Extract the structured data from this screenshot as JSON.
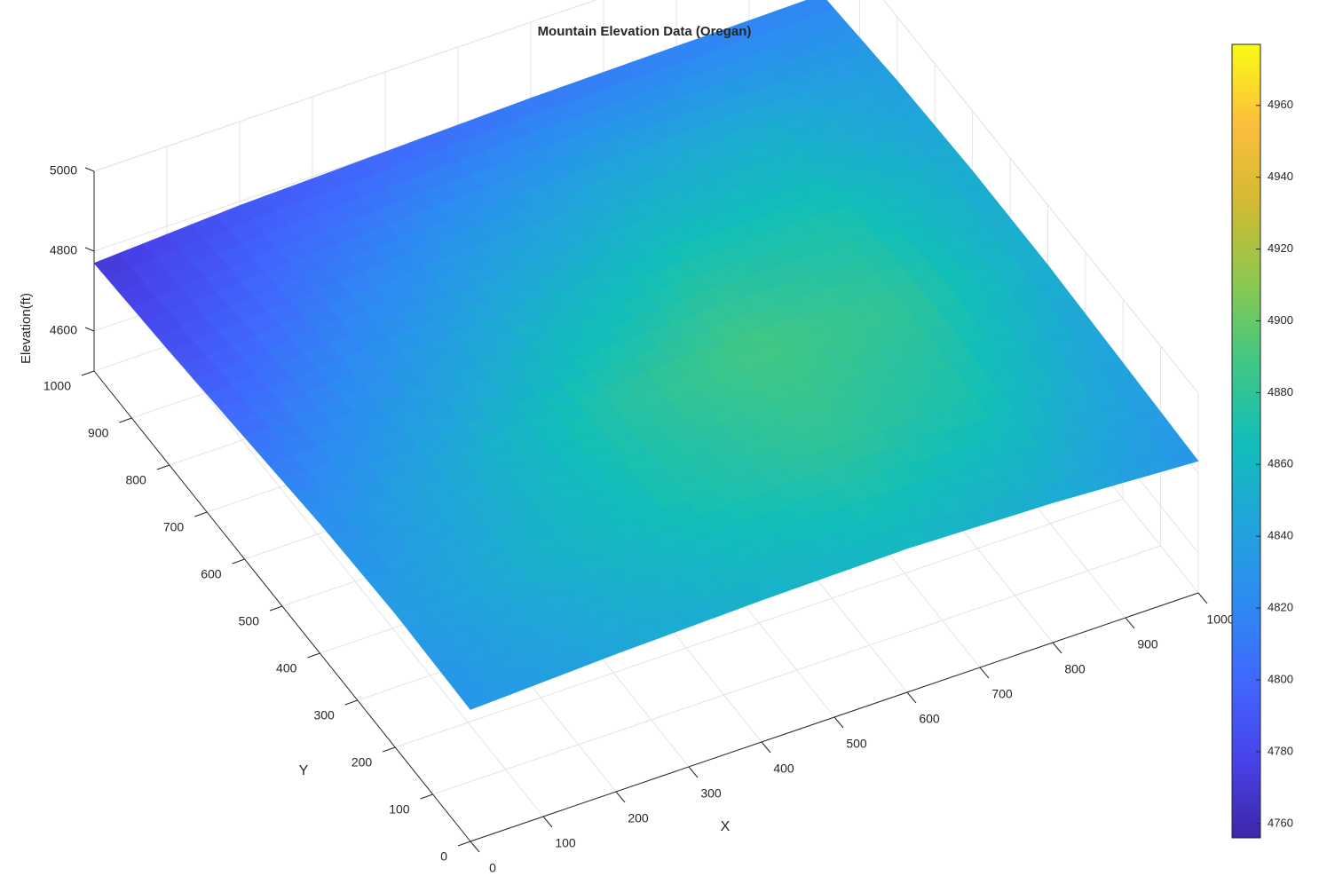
{
  "chart_data": {
    "type": "surface",
    "title": "Mountain Elevation Data (Oregan)",
    "xlabel": "X",
    "ylabel": "Y",
    "zlabel": "Elevation(ft)",
    "x": [
      0,
      200,
      400,
      600,
      800,
      1000
    ],
    "y": [
      0,
      200,
      400,
      600,
      800,
      1000
    ],
    "z": [
      [
        4830,
        4845,
        4855,
        4860,
        4850,
        4830
      ],
      [
        4835,
        4855,
        4870,
        4880,
        4870,
        4840
      ],
      [
        4825,
        4850,
        4875,
        4890,
        4880,
        4850
      ],
      [
        4805,
        4830,
        4855,
        4870,
        4870,
        4850
      ],
      [
        4785,
        4810,
        4830,
        4845,
        4850,
        4840
      ],
      [
        4770,
        4790,
        4800,
        4810,
        4815,
        4820
      ]
    ],
    "xlim": [
      0,
      1000
    ],
    "xticks": [
      0,
      100,
      200,
      300,
      400,
      500,
      600,
      700,
      800,
      900,
      1000
    ],
    "ylim": [
      0,
      1000
    ],
    "yticks": [
      0,
      100,
      200,
      300,
      400,
      500,
      600,
      700,
      800,
      900,
      1000
    ],
    "zlim": [
      4500,
      5000
    ],
    "zticks": [
      4600,
      4800,
      5000
    ],
    "clim": [
      4756,
      4977
    ],
    "cticks": [
      4760,
      4780,
      4800,
      4820,
      4840,
      4860,
      4880,
      4900,
      4920,
      4940,
      4960
    ],
    "grid": true,
    "colorbar": true
  }
}
